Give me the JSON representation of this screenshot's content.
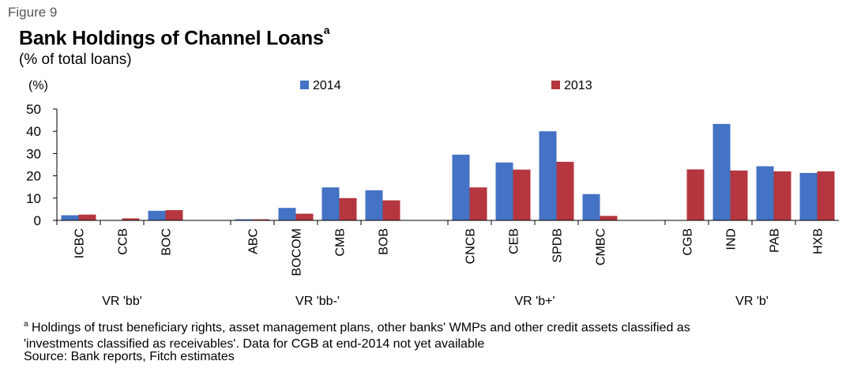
{
  "figure_label": "Figure 9",
  "title": "Bank Holdings of Channel Loans",
  "title_superscript": "a",
  "subtitle": "(% of total loans)",
  "footnote_marker": "a",
  "footnote_line1": "Holdings of trust beneficiary rights, asset management plans, other banks' WMPs and other credit assets classified as",
  "footnote_line2": "'investments classified as receivables'. Data for CGB at end-2014 not yet available",
  "source": "Source: Bank reports, Fitch estimates",
  "colors": {
    "series_2014": "#4472C4",
    "series_2013": "#B5363E",
    "axis": "#000000"
  },
  "chart_data": {
    "type": "bar",
    "title": "Bank Holdings of Channel Loans",
    "ylabel": "(%)",
    "ylim": [
      0,
      50
    ],
    "yticks": [
      0,
      10,
      20,
      30,
      40,
      50
    ],
    "grid": false,
    "legend_position": "top",
    "series": [
      {
        "name": "2014",
        "values": [
          2.3,
          0.2,
          4.3,
          0.5,
          5.6,
          14.8,
          13.5,
          29.5,
          26,
          40,
          11.8,
          null,
          43.3,
          24.3,
          21.3
        ]
      },
      {
        "name": "2013",
        "values": [
          2.6,
          0.9,
          4.6,
          0.5,
          3,
          10,
          9,
          14.8,
          22.8,
          26.3,
          2,
          22.9,
          22.4,
          22,
          22
        ]
      }
    ],
    "groups": [
      {
        "label": "VR 'bb'",
        "categories": [
          "ICBC",
          "CCB",
          "BOC"
        ]
      },
      {
        "label": "VR 'bb-'",
        "categories": [
          "ABC",
          "BOCOM",
          "CMB",
          "BOB"
        ]
      },
      {
        "label": "VR 'b+'",
        "categories": [
          "CNCB",
          "CEB",
          "SPDB",
          "CMBC"
        ]
      },
      {
        "label": "VR 'b'",
        "categories": [
          "CGB",
          "IND",
          "PAB",
          "HXB"
        ]
      }
    ]
  }
}
